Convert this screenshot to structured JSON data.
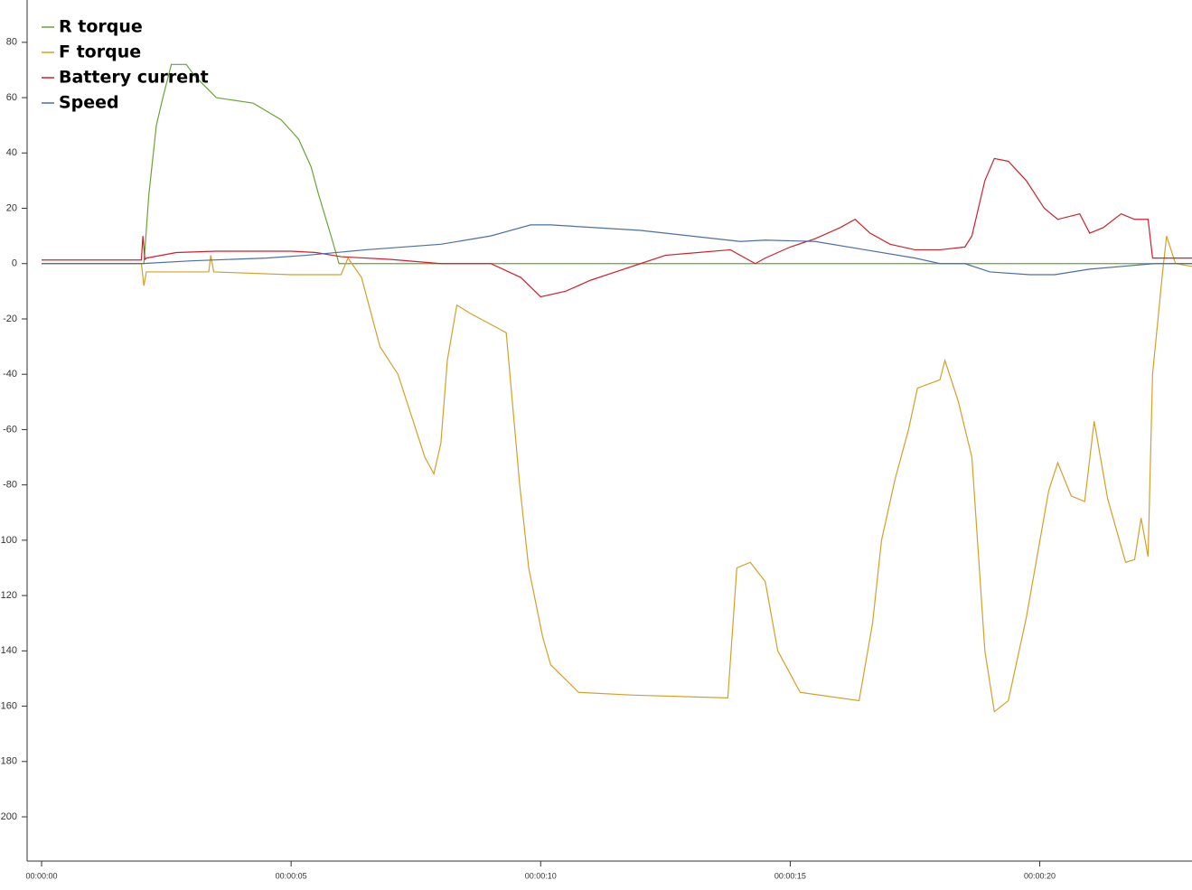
{
  "chart_data": {
    "type": "line",
    "xlim": [
      0,
      23.05
    ],
    "ylim": [
      -216,
      95.3
    ],
    "xticks": [
      {
        "value": 0,
        "label": "00:00:00"
      },
      {
        "value": 5,
        "label": "00:00:05"
      },
      {
        "value": 10,
        "label": "00:00:10"
      },
      {
        "value": 15,
        "label": "00:00:15"
      },
      {
        "value": 20,
        "label": "00:00:20"
      }
    ],
    "yticks": [
      -200,
      -180,
      -160,
      -140,
      -120,
      -100,
      -80,
      -60,
      -40,
      -20,
      0,
      20,
      40,
      60,
      80
    ],
    "legend": "top-left",
    "series": [
      {
        "name": "R torque",
        "color": "#6aa436",
        "x": [
          0,
          2.0,
          2.05,
          2.15,
          2.3,
          2.43,
          2.6,
          2.9,
          3.06,
          3.5,
          4.24,
          4.8,
          5.15,
          5.4,
          5.55,
          5.8,
          5.96,
          10,
          15,
          20,
          23.05
        ],
        "values": [
          0,
          0,
          0,
          25,
          50,
          60,
          72,
          72,
          68,
          60,
          58,
          52,
          45,
          35,
          25,
          10,
          0,
          0,
          0,
          0,
          0
        ]
      },
      {
        "name": "F torque",
        "color": "#d4a028",
        "x": [
          0,
          2.0,
          2.05,
          2.1,
          3.35,
          3.39,
          3.45,
          5,
          6.0,
          6.14,
          6.41,
          6.78,
          7.14,
          7.41,
          7.68,
          7.86,
          8.0,
          8.13,
          8.32,
          8.59,
          9.31,
          9.58,
          9.76,
          10.04,
          10.2,
          10.76,
          11.85,
          13.75,
          13.93,
          14.2,
          14.5,
          14.75,
          15.2,
          16.38,
          16.65,
          16.83,
          17.1,
          17.37,
          17.55,
          18.0,
          18.1,
          18.37,
          18.64,
          18.9,
          19.09,
          19.37,
          19.73,
          20.18,
          20.36,
          20.63,
          20.9,
          21.09,
          21.36,
          21.72,
          21.9,
          22.03,
          22.17,
          22.26,
          22.45,
          22.54,
          22.72,
          23.05
        ],
        "values": [
          0,
          0,
          -8,
          -3,
          -3,
          3,
          -3,
          -4,
          -4,
          2,
          -5,
          -30,
          -40,
          -55,
          -70,
          -76,
          -65,
          -35,
          -15,
          -18,
          -25,
          -80,
          -110,
          -135,
          -145,
          -155,
          -156,
          -157,
          -110,
          -108,
          -115,
          -140,
          -155,
          -158,
          -130,
          -100,
          -78,
          -60,
          -45,
          -42,
          -35,
          -50,
          -70,
          -140,
          -162,
          -158,
          -128,
          -82,
          -72,
          -84,
          -86,
          -57,
          -85,
          -108,
          -107,
          -92,
          -106,
          -40,
          -5,
          10,
          0,
          -1
        ]
      },
      {
        "name": "Battery current",
        "color": "#d0202a",
        "x": [
          0,
          2.0,
          2.03,
          2.07,
          2.1,
          2.7,
          3.5,
          5,
          5.5,
          6,
          7,
          8,
          9,
          9.6,
          10,
          10.5,
          11,
          11.5,
          12,
          12.5,
          13.8,
          14.3,
          14.5,
          15,
          15.5,
          16,
          16.3,
          16.6,
          17,
          17.5,
          18,
          18.5,
          18.64,
          18.9,
          19.09,
          19.37,
          19.73,
          20.09,
          20.36,
          20.8,
          21,
          21.27,
          21.63,
          21.9,
          22.17,
          22.26,
          23.05
        ],
        "values": [
          1.3,
          1.3,
          10,
          1.5,
          2,
          4,
          4.5,
          4.5,
          4,
          2.5,
          1.5,
          0,
          0,
          -5,
          -12,
          -10,
          -6,
          -3,
          0,
          3,
          5,
          0,
          2,
          6,
          9,
          13,
          16,
          11,
          7,
          5,
          5,
          6,
          10,
          30,
          38,
          37,
          30,
          20,
          16,
          18,
          11,
          13,
          18,
          16,
          16,
          2,
          2
        ]
      },
      {
        "name": "Speed",
        "color": "#4a6ea8",
        "x": [
          0,
          2,
          3,
          4.5,
          5.3,
          6.5,
          8,
          9,
          9.8,
          10.2,
          12,
          13,
          14,
          14.5,
          15.5,
          16.5,
          17.5,
          18,
          18.5,
          19,
          19.8,
          20.3,
          21,
          22.3,
          23.05
        ],
        "values": [
          0,
          0,
          1,
          2,
          3,
          5,
          7,
          10,
          14,
          14,
          12,
          10,
          8,
          8.5,
          8,
          5,
          2,
          0,
          0,
          -3,
          -4,
          -4,
          -2,
          0,
          0
        ]
      }
    ]
  }
}
